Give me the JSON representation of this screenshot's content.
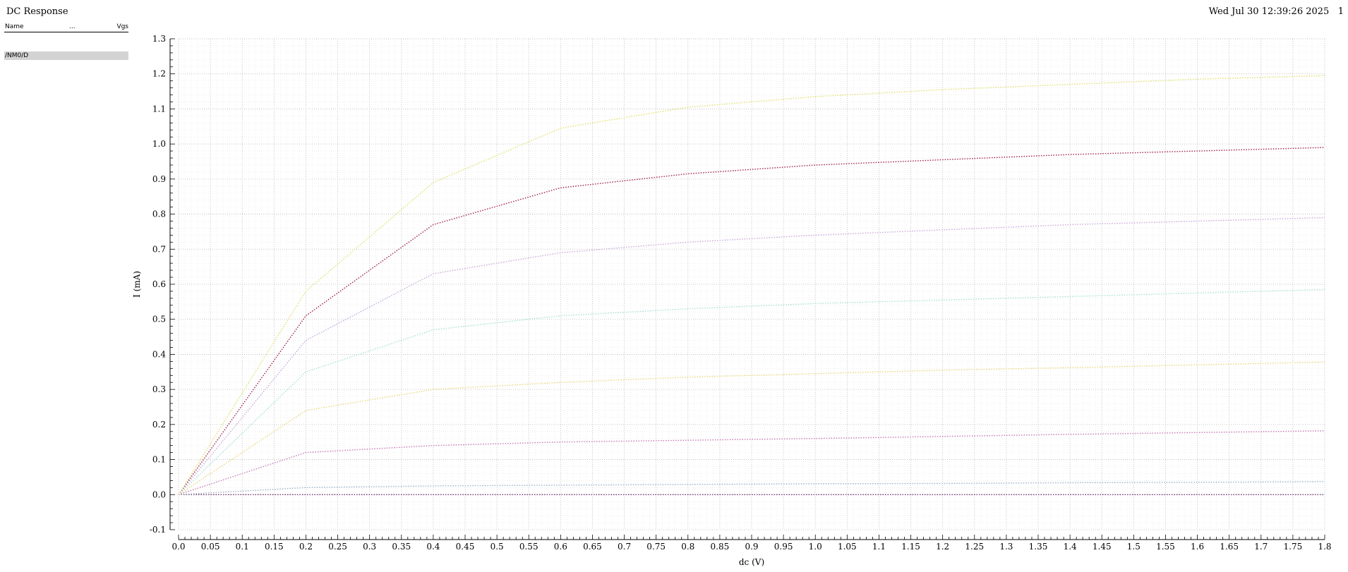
{
  "header": {
    "title": "DC Response",
    "date": "Wed Jul 30 12:39:26 2025",
    "page_number": "1"
  },
  "legend": {
    "col_name": "Name",
    "col_dots": "...",
    "col_vgs": "Vgs",
    "signal": "/NM0/D"
  },
  "chart_data": {
    "type": "line",
    "xlabel": "dc (V)",
    "ylabel": "I (mA)",
    "xlim": [
      0.0,
      1.8
    ],
    "ylim": [
      -0.1,
      1.3
    ],
    "grid": true,
    "x_ticks": [
      "0.0",
      "0.05",
      "0.1",
      "0.15",
      "0.2",
      "0.25",
      "0.3",
      "0.35",
      "0.4",
      "0.45",
      "0.5",
      "0.55",
      "0.6",
      "0.65",
      "0.7",
      "0.75",
      "0.8",
      "0.85",
      "0.9",
      "0.95",
      "1.0",
      "1.05",
      "1.1",
      "1.15",
      "1.2",
      "1.25",
      "1.3",
      "1.35",
      "1.4",
      "1.45",
      "1.5",
      "1.55",
      "1.6",
      "1.65",
      "1.7",
      "1.75",
      "1.8"
    ],
    "y_ticks": [
      "-0.1",
      "0.0",
      "0.1",
      "0.2",
      "0.3",
      "0.4",
      "0.5",
      "0.6",
      "0.7",
      "0.8",
      "0.9",
      "1.0",
      "1.1",
      "1.2",
      "1.3"
    ],
    "x": [
      0.0,
      0.2,
      0.4,
      0.6,
      0.8,
      1.0,
      1.2,
      1.4,
      1.6,
      1.8
    ],
    "series": [
      {
        "color": "#7a3a7a",
        "values": [
          0.0,
          0.0,
          0.0,
          0.0,
          0.0,
          0.0,
          0.0,
          0.0,
          0.0,
          0.0
        ]
      },
      {
        "color": "#9ab0c8",
        "values": [
          0.0,
          0.02,
          0.025,
          0.027,
          0.029,
          0.031,
          0.032,
          0.034,
          0.035,
          0.037
        ]
      },
      {
        "color": "#c878b4",
        "values": [
          0.0,
          0.12,
          0.14,
          0.15,
          0.155,
          0.16,
          0.166,
          0.172,
          0.177,
          0.182
        ]
      },
      {
        "color": "#e8d878",
        "values": [
          0.0,
          0.24,
          0.3,
          0.32,
          0.335,
          0.345,
          0.355,
          0.362,
          0.37,
          0.378
        ]
      },
      {
        "color": "#a8e0d8",
        "values": [
          0.0,
          0.35,
          0.47,
          0.51,
          0.53,
          0.545,
          0.555,
          0.565,
          0.575,
          0.585
        ]
      },
      {
        "color": "#c8a8d8",
        "values": [
          0.0,
          0.44,
          0.63,
          0.69,
          0.72,
          0.74,
          0.755,
          0.77,
          0.78,
          0.79
        ]
      },
      {
        "color": "#a02050",
        "values": [
          0.0,
          0.51,
          0.77,
          0.875,
          0.915,
          0.94,
          0.955,
          0.97,
          0.98,
          0.99
        ]
      },
      {
        "color": "#e0e070",
        "values": [
          0.0,
          0.58,
          0.89,
          1.045,
          1.105,
          1.135,
          1.155,
          1.17,
          1.185,
          1.195
        ]
      }
    ]
  }
}
